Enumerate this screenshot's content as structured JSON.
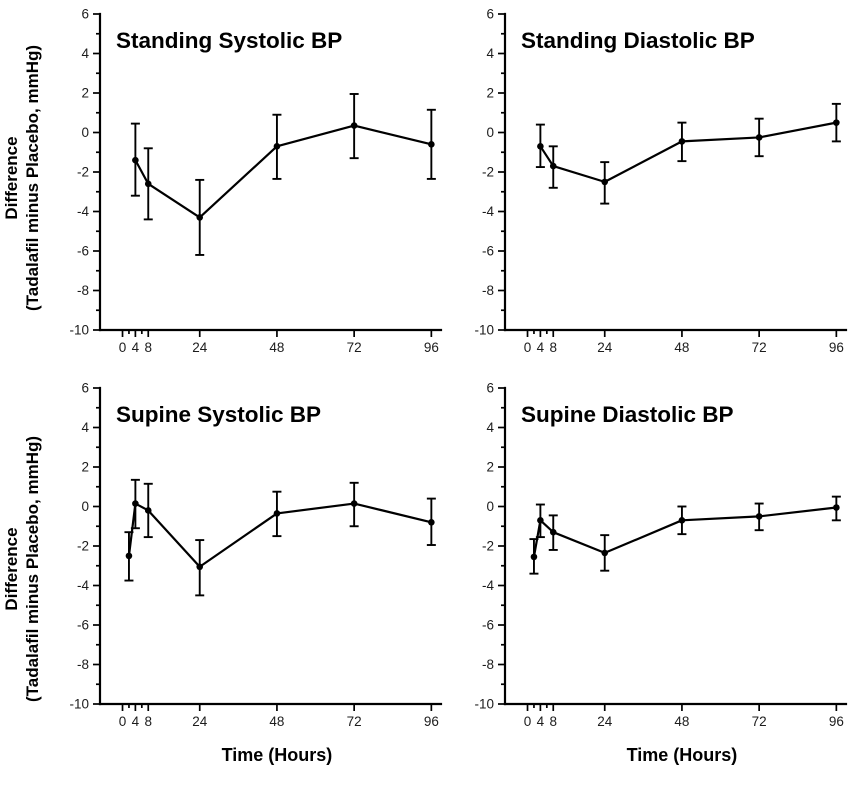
{
  "figure": {
    "ylabel_line1": "Difference",
    "ylabel_line2": "(Tadalafil minus Placebo, mmHg)",
    "xlabel": "Time (Hours)",
    "colors": {
      "foreground": "#000000",
      "tick_text": "#1c1c1c",
      "background": "#ffffff"
    }
  },
  "chart_data": [
    {
      "type": "line",
      "title": "Standing Systolic BP",
      "x": [
        4,
        8,
        24,
        48,
        72,
        96
      ],
      "values": [
        -1.4,
        -2.6,
        -4.3,
        -0.7,
        0.35,
        -0.6
      ],
      "error_upper": [
        0.45,
        -0.8,
        -2.4,
        0.9,
        1.95,
        1.15
      ],
      "error_lower": [
        -3.2,
        -4.4,
        -6.2,
        -2.35,
        -1.3,
        -2.35
      ],
      "xlabel": "",
      "ylabel": "Difference (Tadalafil minus Placebo, mmHg)",
      "xlim": [
        -7,
        99
      ],
      "ylim": [
        -10,
        6
      ],
      "x_ticks_major": [
        0,
        4,
        8,
        24,
        48,
        72,
        96
      ],
      "x_ticks_minor": [
        2,
        6
      ],
      "y_ticks_major": [
        6,
        4,
        2,
        0,
        -2,
        -4,
        -6,
        -8,
        -10
      ],
      "y_ticks_minor": [
        5,
        3,
        1,
        -1,
        -3,
        -5,
        -7,
        -9
      ],
      "grid": false,
      "legend": "none",
      "marker": "filled-circle",
      "error_bars": true
    },
    {
      "type": "line",
      "title": "Standing Diastolic BP",
      "x": [
        4,
        8,
        24,
        48,
        72,
        96
      ],
      "values": [
        -0.7,
        -1.7,
        -2.5,
        -0.45,
        -0.25,
        0.5
      ],
      "error_upper": [
        0.4,
        -0.7,
        -1.5,
        0.5,
        0.7,
        1.45
      ],
      "error_lower": [
        -1.75,
        -2.8,
        -3.6,
        -1.45,
        -1.2,
        -0.45
      ],
      "xlabel": "",
      "ylabel": "Difference (Tadalafil minus Placebo, mmHg)",
      "xlim": [
        -7,
        99
      ],
      "ylim": [
        -10,
        6
      ],
      "x_ticks_major": [
        0,
        4,
        8,
        24,
        48,
        72,
        96
      ],
      "x_ticks_minor": [
        2,
        6
      ],
      "y_ticks_major": [
        6,
        4,
        2,
        0,
        -2,
        -4,
        -6,
        -8,
        -10
      ],
      "y_ticks_minor": [
        5,
        3,
        1,
        -1,
        -3,
        -5,
        -7,
        -9
      ],
      "grid": false,
      "legend": "none",
      "marker": "filled-circle",
      "error_bars": true
    },
    {
      "type": "line",
      "title": "Supine Systolic BP",
      "x": [
        2,
        4,
        8,
        24,
        48,
        72,
        96
      ],
      "values": [
        -2.5,
        0.15,
        -0.2,
        -3.05,
        -0.35,
        0.15,
        -0.8
      ],
      "error_upper": [
        -1.3,
        1.35,
        1.15,
        -1.7,
        0.75,
        1.2,
        0.4
      ],
      "error_lower": [
        -3.75,
        -1.1,
        -1.55,
        -4.5,
        -1.5,
        -1.0,
        -1.95
      ],
      "xlabel": "Time (Hours)",
      "ylabel": "Difference (Tadalafil minus Placebo, mmHg)",
      "xlim": [
        -7,
        99
      ],
      "ylim": [
        -10,
        6
      ],
      "x_ticks_major": [
        0,
        4,
        8,
        24,
        48,
        72,
        96
      ],
      "x_ticks_minor": [
        2,
        6
      ],
      "y_ticks_major": [
        6,
        4,
        2,
        0,
        -2,
        -4,
        -6,
        -8,
        -10
      ],
      "y_ticks_minor": [
        5,
        3,
        1,
        -1,
        -3,
        -5,
        -7,
        -9
      ],
      "grid": false,
      "legend": "none",
      "marker": "filled-circle",
      "error_bars": true
    },
    {
      "type": "line",
      "title": "Supine Diastolic BP",
      "x": [
        2,
        4,
        8,
        24,
        48,
        72,
        96
      ],
      "values": [
        -2.55,
        -0.7,
        -1.3,
        -2.35,
        -0.7,
        -0.5,
        -0.05
      ],
      "error_upper": [
        -1.65,
        0.1,
        -0.45,
        -1.45,
        0.0,
        0.15,
        0.5
      ],
      "error_lower": [
        -3.4,
        -1.55,
        -2.2,
        -3.25,
        -1.4,
        -1.2,
        -0.7
      ],
      "xlabel": "Time (Hours)",
      "ylabel": "Difference (Tadalafil minus Placebo, mmHg)",
      "xlim": [
        -7,
        99
      ],
      "ylim": [
        -10,
        6
      ],
      "x_ticks_major": [
        0,
        4,
        8,
        24,
        48,
        72,
        96
      ],
      "x_ticks_minor": [
        2,
        6
      ],
      "y_ticks_major": [
        6,
        4,
        2,
        0,
        -2,
        -4,
        -6,
        -8,
        -10
      ],
      "y_ticks_minor": [
        5,
        3,
        1,
        -1,
        -3,
        -5,
        -7,
        -9
      ],
      "grid": false,
      "legend": "none",
      "marker": "filled-circle",
      "error_bars": true
    }
  ]
}
